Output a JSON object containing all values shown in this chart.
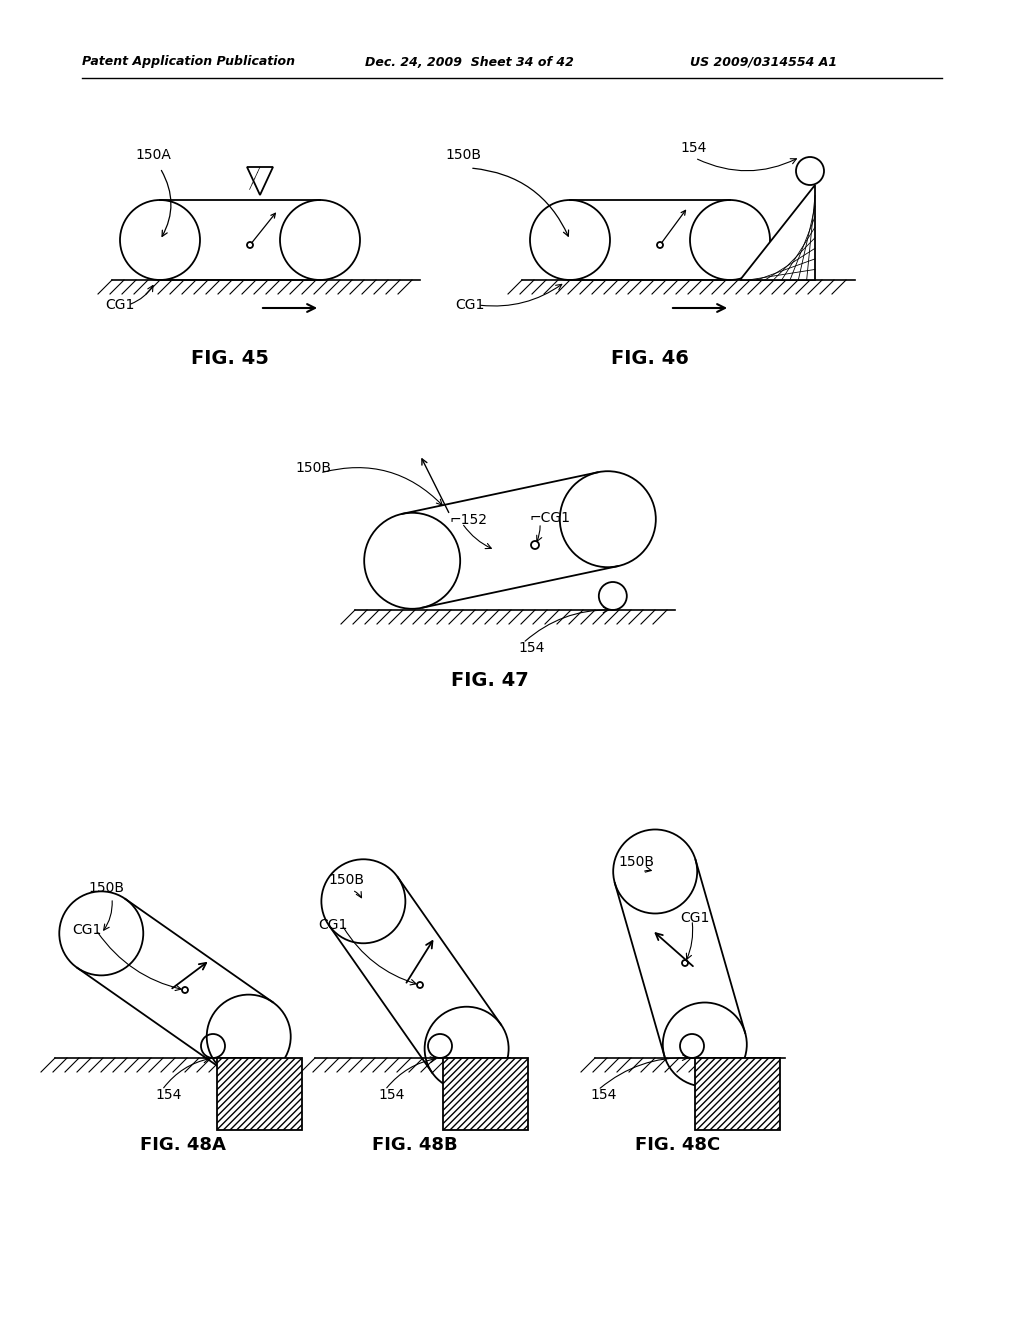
{
  "bg_color": "#ffffff",
  "header_text": "Patent Application Publication",
  "header_date": "Dec. 24, 2009  Sheet 34 of 42",
  "header_patent": "US 2009/0314554 A1",
  "fig45_label": "FIG. 45",
  "fig46_label": "FIG. 46",
  "fig47_label": "FIG. 47",
  "fig48a_label": "FIG. 48A",
  "fig48b_label": "FIG. 48B",
  "fig48c_label": "FIG. 48C"
}
